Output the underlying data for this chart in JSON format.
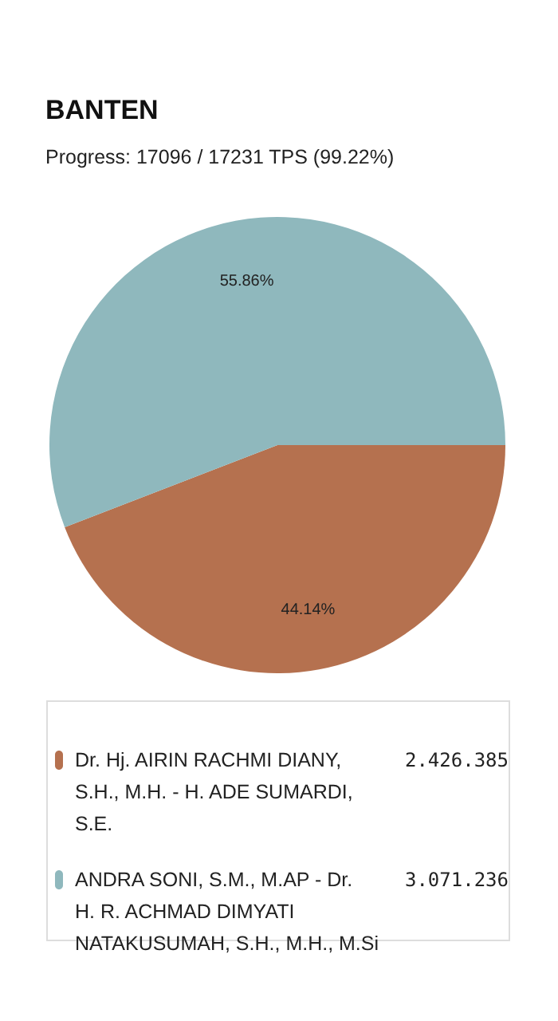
{
  "chart_data": {
    "type": "pie",
    "title": "BANTEN",
    "subtitle": "Progress: 17096 / 17231 TPS (99.22%)",
    "categories": [
      "Dr. Hj. AIRIN RACHMI DIANY, S.H., M.H. - H. ADE SUMARDI, S.E.",
      "ANDRA SONI, S.M., M.AP - Dr. H. R. ACHMAD DIMYATI NATAKUSUMAH, S.H., M.H., M.Si"
    ],
    "values": [
      44.14,
      55.86
    ],
    "annotations": [
      "2.426.385",
      "3.071.236"
    ],
    "value_labels": [
      "44.14%",
      "55.86%"
    ],
    "colors": [
      "#b5714f",
      "#8fb8bd"
    ],
    "legend": "bottom"
  }
}
